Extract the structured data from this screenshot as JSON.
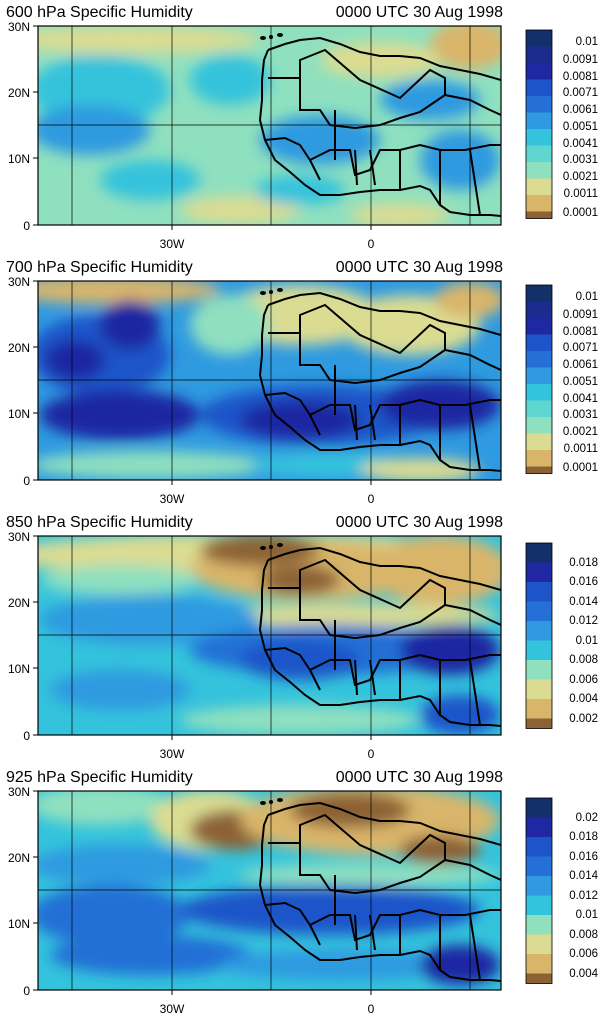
{
  "figure": {
    "colors": {
      "dry_brown": "#8c6235",
      "tan": "#d9b56a",
      "light_yellow": "#dbdc92",
      "mint": "#8fe0bf",
      "cyan": "#34c3dc",
      "sky_blue": "#2f9ae0",
      "royal_blue": "#1d54c9",
      "dark_blue": "#1f27a2",
      "navy": "#13306a",
      "coastline": "#000000"
    },
    "panels": [
      {
        "title_left": "600 hPa Specific Humidity",
        "title_right": "0000 UTC 30 Aug 1998",
        "lat_labels": [
          "30N",
          "20N",
          "10N",
          "0"
        ],
        "lon_labels": [
          "30W",
          "0"
        ],
        "colorbar_labels": [
          "0.01",
          "0.0091",
          "0.0081",
          "0.0071",
          "0.0061",
          "0.0051",
          "0.0041",
          "0.0031",
          "0.0021",
          "0.0011",
          "0.0001"
        ]
      },
      {
        "title_left": "700 hPa Specific Humidity",
        "title_right": "0000 UTC 30 Aug 1998",
        "lat_labels": [
          "30N",
          "20N",
          "10N",
          "0"
        ],
        "lon_labels": [
          "30W",
          "0"
        ],
        "colorbar_labels": [
          "0.01",
          "0.0091",
          "0.0081",
          "0.0071",
          "0.0061",
          "0.0051",
          "0.0041",
          "0.0031",
          "0.0021",
          "0.0011",
          "0.0001"
        ]
      },
      {
        "title_left": "850 hPa Specific Humidity",
        "title_right": "0000 UTC 30 Aug 1998",
        "lat_labels": [
          "30N",
          "20N",
          "10N",
          "0"
        ],
        "lon_labels": [
          "30W",
          "0"
        ],
        "colorbar_labels": [
          "0.018",
          "0.016",
          "0.014",
          "0.012",
          "0.01",
          "0.008",
          "0.006",
          "0.004",
          "0.002"
        ]
      },
      {
        "title_left": "925 hPa Specific Humidity",
        "title_right": "0000 UTC 30 Aug 1998",
        "lat_labels": [
          "30N",
          "20N",
          "10N",
          "0"
        ],
        "lon_labels": [
          "30W",
          "0"
        ],
        "colorbar_labels": [
          "0.02",
          "0.018",
          "0.016",
          "0.014",
          "0.012",
          "0.01",
          "0.008",
          "0.006",
          "0.004"
        ]
      }
    ]
  }
}
